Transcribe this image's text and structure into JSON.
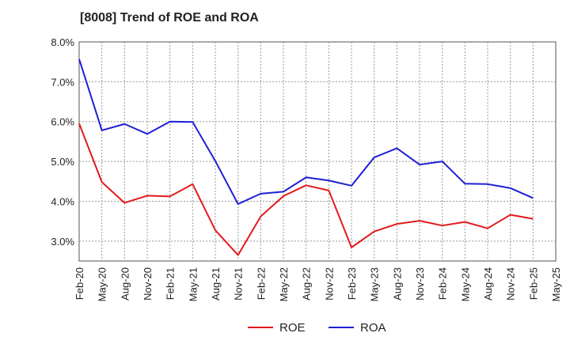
{
  "chart_data": {
    "type": "line",
    "title": "[8008]  Trend of ROE and ROA",
    "xlabel": "",
    "ylabel": "",
    "ylim": [
      2.5,
      8.0
    ],
    "y_ticks": [
      "3.0%",
      "4.0%",
      "5.0%",
      "6.0%",
      "7.0%",
      "8.0%"
    ],
    "y_tick_values": [
      3.0,
      4.0,
      5.0,
      6.0,
      7.0,
      8.0
    ],
    "categories": [
      "Feb-20",
      "May-20",
      "Aug-20",
      "Nov-20",
      "Feb-21",
      "May-21",
      "Aug-21",
      "Nov-21",
      "Feb-22",
      "May-22",
      "Aug-22",
      "Nov-22",
      "Feb-23",
      "May-23",
      "Aug-23",
      "Nov-23",
      "Feb-24",
      "May-24",
      "Aug-24",
      "Nov-24",
      "Feb-25",
      "May-25"
    ],
    "grid": true,
    "legend_position": "bottom",
    "series": [
      {
        "name": "ROE",
        "color": "#e31a1c",
        "values": [
          5.95,
          4.48,
          3.96,
          4.14,
          4.12,
          4.43,
          3.27,
          2.65,
          3.62,
          4.13,
          4.4,
          4.27,
          2.84,
          3.24,
          3.43,
          3.51,
          3.39,
          3.48,
          3.32,
          3.66,
          3.56,
          null
        ]
      },
      {
        "name": "ROA",
        "color": "#1f1fd6",
        "values": [
          7.57,
          5.78,
          5.94,
          5.69,
          6.0,
          5.99,
          5.01,
          3.93,
          4.19,
          4.24,
          4.6,
          4.52,
          4.39,
          5.1,
          5.33,
          4.92,
          5.0,
          4.44,
          4.43,
          4.33,
          4.08,
          null
        ]
      }
    ]
  }
}
